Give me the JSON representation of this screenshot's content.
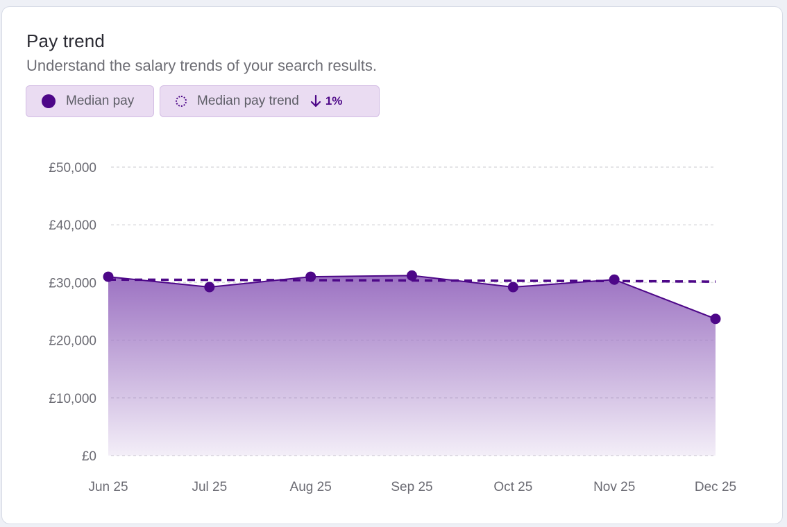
{
  "card": {
    "title": "Pay trend",
    "subtitle": "Understand the salary trends of your search results."
  },
  "legend": {
    "median_label": "Median pay",
    "trend_label": "Median pay trend",
    "trend_direction": "down",
    "trend_change": "1%"
  },
  "colors": {
    "accent": "#4d0788",
    "area_top": "#9c72c2",
    "chip_bg": "#eadcf2",
    "grid": "#dcdcdf"
  },
  "chart_data": {
    "type": "area",
    "x": [
      "Jun 25",
      "Jul 25",
      "Aug 25",
      "Sep 25",
      "Oct 25",
      "Nov 25",
      "Dec 25"
    ],
    "series": [
      {
        "name": "Median pay",
        "values": [
          31000,
          29200,
          31000,
          31200,
          29200,
          30500,
          23700
        ]
      },
      {
        "name": "Median pay trend",
        "style": "dashed",
        "values": [
          30500,
          30450,
          30400,
          30350,
          30300,
          30250,
          30150
        ]
      }
    ],
    "yticks": [
      "£0",
      "£10,000",
      "£20,000",
      "£30,000",
      "£40,000",
      "£50,000"
    ],
    "ytick_values": [
      0,
      10000,
      20000,
      30000,
      40000,
      50000
    ],
    "ylim": [
      0,
      50000
    ],
    "grid": true,
    "xlabel": "",
    "ylabel": ""
  }
}
